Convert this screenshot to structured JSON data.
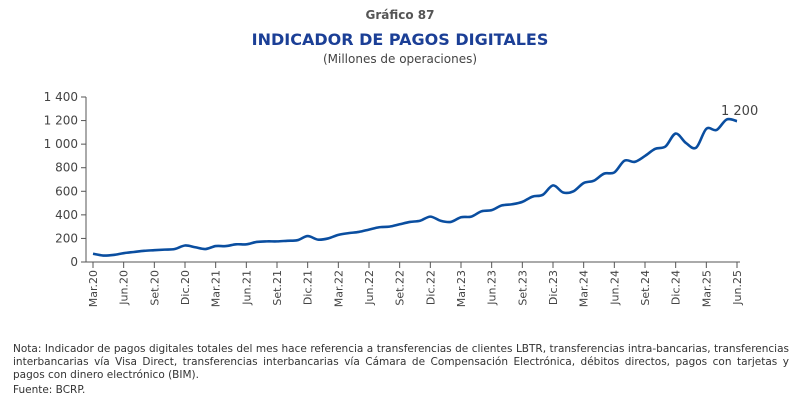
{
  "header": {
    "chart_number": "Gráfico 87",
    "title": "INDICADOR DE PAGOS DIGITALES",
    "units": "(Millones de operaciones)"
  },
  "chart_data": {
    "type": "line",
    "title": "INDICADOR DE PAGOS DIGITALES",
    "ylabel": "Millones de operaciones",
    "ylim": [
      0,
      1400
    ],
    "yticks": [
      0,
      200,
      400,
      600,
      800,
      1000,
      1200,
      1400
    ],
    "ytick_labels": [
      "0",
      "200",
      "400",
      "600",
      "800",
      "1 000",
      "1 200",
      "1 400"
    ],
    "xtick_labels": [
      "Mar.20",
      "Jun.20",
      "Set.20",
      "Dic.20",
      "Mar.21",
      "Jun.21",
      "Set.21",
      "Dic.21",
      "Mar.22",
      "Jun.22",
      "Set.22",
      "Dic.22",
      "Mar.23",
      "Jun.23",
      "Set.23",
      "Dic.23",
      "Mar.24",
      "Jun.24",
      "Set.24",
      "Dic.24",
      "Mar.25",
      "Jun.25"
    ],
    "x_start": "Mar.20",
    "x_frequency": "monthly",
    "series": [
      {
        "name": "Indicador de pagos digitales",
        "color": "#0a4ea0",
        "values": [
          70,
          55,
          60,
          75,
          85,
          95,
          100,
          105,
          110,
          140,
          125,
          110,
          135,
          135,
          150,
          150,
          170,
          175,
          175,
          180,
          185,
          220,
          190,
          200,
          230,
          245,
          255,
          275,
          295,
          300,
          320,
          340,
          350,
          385,
          350,
          340,
          380,
          385,
          430,
          440,
          480,
          490,
          510,
          555,
          570,
          650,
          590,
          600,
          670,
          690,
          750,
          760,
          860,
          850,
          900,
          960,
          980,
          1090,
          1010,
          970,
          1130,
          1120,
          1210,
          1195
        ]
      }
    ],
    "annotations": [
      {
        "text": "1 200",
        "at": "last"
      }
    ]
  },
  "footer": {
    "note": "Nota: Indicador de pagos digitales totales del mes hace referencia a transferencias de clientes LBTR, transferencias intra-bancarias, transferencias interbancarias vía Visa Direct, transferencias interbancarias vía Cámara de Compensación Electrónica, débitos directos, pagos con tarjetas y pagos con dinero electrónico (BIM).",
    "source": "Fuente: BCRP."
  }
}
